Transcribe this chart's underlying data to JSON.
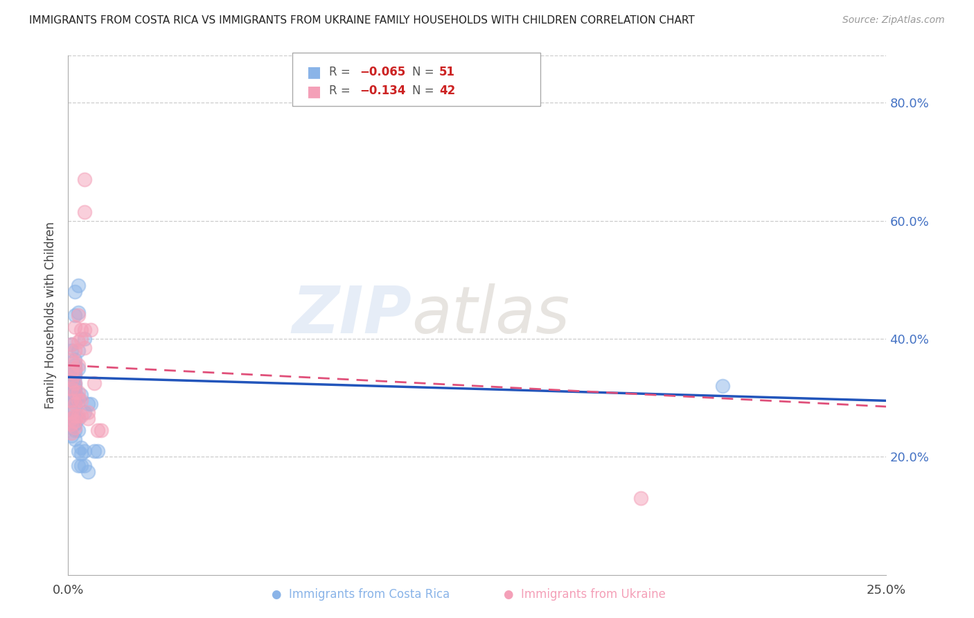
{
  "title": "IMMIGRANTS FROM COSTA RICA VS IMMIGRANTS FROM UKRAINE FAMILY HOUSEHOLDS WITH CHILDREN CORRELATION CHART",
  "source": "Source: ZipAtlas.com",
  "ylabel": "Family Households with Children",
  "xmin": 0.0,
  "xmax": 0.25,
  "ymin": 0.0,
  "ymax": 0.88,
  "blue_color": "#8ab4e8",
  "pink_color": "#f4a0b8",
  "trendline_blue_color": "#2255bb",
  "trendline_pink_color": "#e0507a",
  "blue_scatter": [
    [
      0.001,
      0.39
    ],
    [
      0.001,
      0.38
    ],
    [
      0.001,
      0.34
    ],
    [
      0.001,
      0.31
    ],
    [
      0.001,
      0.295
    ],
    [
      0.001,
      0.28
    ],
    [
      0.001,
      0.265
    ],
    [
      0.001,
      0.25
    ],
    [
      0.001,
      0.235
    ],
    [
      0.002,
      0.48
    ],
    [
      0.002,
      0.44
    ],
    [
      0.002,
      0.365
    ],
    [
      0.002,
      0.355
    ],
    [
      0.002,
      0.35
    ],
    [
      0.002,
      0.345
    ],
    [
      0.002,
      0.34
    ],
    [
      0.002,
      0.335
    ],
    [
      0.002,
      0.325
    ],
    [
      0.002,
      0.32
    ],
    [
      0.002,
      0.315
    ],
    [
      0.002,
      0.31
    ],
    [
      0.002,
      0.3
    ],
    [
      0.002,
      0.295
    ],
    [
      0.002,
      0.28
    ],
    [
      0.002,
      0.265
    ],
    [
      0.002,
      0.255
    ],
    [
      0.002,
      0.245
    ],
    [
      0.002,
      0.23
    ],
    [
      0.003,
      0.49
    ],
    [
      0.003,
      0.445
    ],
    [
      0.003,
      0.38
    ],
    [
      0.003,
      0.35
    ],
    [
      0.003,
      0.3
    ],
    [
      0.003,
      0.265
    ],
    [
      0.003,
      0.245
    ],
    [
      0.003,
      0.21
    ],
    [
      0.003,
      0.185
    ],
    [
      0.004,
      0.305
    ],
    [
      0.004,
      0.215
    ],
    [
      0.004,
      0.205
    ],
    [
      0.004,
      0.185
    ],
    [
      0.005,
      0.4
    ],
    [
      0.005,
      0.275
    ],
    [
      0.005,
      0.21
    ],
    [
      0.005,
      0.185
    ],
    [
      0.006,
      0.29
    ],
    [
      0.006,
      0.175
    ],
    [
      0.007,
      0.29
    ],
    [
      0.008,
      0.21
    ],
    [
      0.009,
      0.21
    ],
    [
      0.2,
      0.32
    ]
  ],
  "pink_scatter": [
    [
      0.001,
      0.39
    ],
    [
      0.001,
      0.365
    ],
    [
      0.001,
      0.345
    ],
    [
      0.001,
      0.33
    ],
    [
      0.001,
      0.315
    ],
    [
      0.001,
      0.295
    ],
    [
      0.001,
      0.275
    ],
    [
      0.001,
      0.265
    ],
    [
      0.001,
      0.255
    ],
    [
      0.001,
      0.24
    ],
    [
      0.002,
      0.42
    ],
    [
      0.002,
      0.38
    ],
    [
      0.002,
      0.36
    ],
    [
      0.002,
      0.35
    ],
    [
      0.002,
      0.34
    ],
    [
      0.002,
      0.325
    ],
    [
      0.002,
      0.31
    ],
    [
      0.002,
      0.29
    ],
    [
      0.002,
      0.27
    ],
    [
      0.002,
      0.26
    ],
    [
      0.002,
      0.25
    ],
    [
      0.003,
      0.44
    ],
    [
      0.003,
      0.395
    ],
    [
      0.003,
      0.355
    ],
    [
      0.003,
      0.31
    ],
    [
      0.003,
      0.295
    ],
    [
      0.003,
      0.27
    ],
    [
      0.004,
      0.415
    ],
    [
      0.004,
      0.4
    ],
    [
      0.004,
      0.295
    ],
    [
      0.004,
      0.27
    ],
    [
      0.005,
      0.67
    ],
    [
      0.005,
      0.615
    ],
    [
      0.005,
      0.415
    ],
    [
      0.005,
      0.385
    ],
    [
      0.006,
      0.275
    ],
    [
      0.006,
      0.265
    ],
    [
      0.007,
      0.415
    ],
    [
      0.008,
      0.325
    ],
    [
      0.009,
      0.245
    ],
    [
      0.01,
      0.245
    ],
    [
      0.175,
      0.13
    ]
  ]
}
